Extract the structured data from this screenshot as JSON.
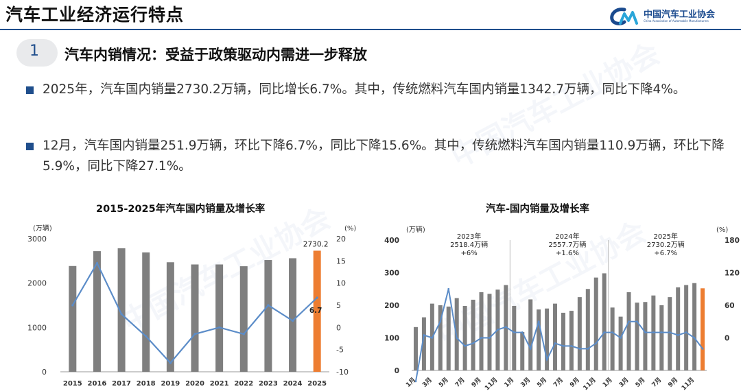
{
  "header": {
    "title": "汽车工业经济运行特点",
    "logo_cn": "中国汽车工业协会",
    "logo_en": "China Association of Automobile Manufacturers",
    "accent_color": "#1f4e8c"
  },
  "section": {
    "number": "1",
    "title": "汽车内销情况：受益于政策驱动内需进一步释放"
  },
  "bullets": [
    "2025年，汽车国内销量2730.2万辆，同比增长6.7%。其中，传统燃料汽车国内销量1342.7万辆，同比下降4%。",
    "12月，汽车国内销量251.9万辆，环比下降6.7%，同比下降15.6%。其中，传统燃料汽车国内销量110.9万辆，环比下降5.9%，同比下降27.1%。"
  ],
  "chart_left_title": "2015-2025年汽车国内销量及增长率",
  "chart_right_title": "汽车-国内销量及增长率",
  "chart_data": [
    {
      "type": "bar",
      "title": "2015-2025年汽车国内销量及增长率",
      "left_unit": "(万辆)",
      "right_unit": "(%)",
      "categories": [
        "2015",
        "2016",
        "2017",
        "2018",
        "2019",
        "2020",
        "2021",
        "2022",
        "2023",
        "2024",
        "2025"
      ],
      "series": [
        {
          "values": [
            2385,
            2720,
            2785,
            2690,
            2470,
            2420,
            2420,
            2380,
            2520,
            2560,
            2730.2
          ]
        },
        {
          "type": "line",
          "axis": "right",
          "values": [
            5,
            14.5,
            3,
            -2,
            -8,
            -1.5,
            0,
            -1.5,
            5,
            1.5,
            6.7
          ]
        }
      ],
      "data_labels": [
        "2730.2",
        "6.7"
      ],
      "ylim_left": [
        0,
        3000
      ],
      "ylim_right": [
        -10,
        20
      ],
      "left_ticks": [
        "0",
        "1000",
        "2000",
        "3000"
      ],
      "right_ticks": [
        "-10",
        "-5",
        "0",
        "5",
        "10",
        "15",
        "20"
      ],
      "colors": {
        "bars": "#7f7f7f",
        "highlight_bar": "#ed7d31",
        "line": "#5b8cc8"
      }
    },
    {
      "type": "bar",
      "title": "汽车-国内销量及增长率",
      "left_unit": "(万辆)",
      "right_unit": "(%)",
      "x_tick_labels": [
        "1月",
        "3月",
        "5月",
        "7月",
        "9月",
        "11月",
        "1月",
        "3月",
        "5月",
        "7月",
        "9月",
        "11月",
        "1月",
        "3月",
        "5月",
        "7月",
        "9月",
        "11月"
      ],
      "series": [
        {
          "values": [
            133,
            163,
            205,
            200,
            196,
            222,
            198,
            217,
            240,
            235,
            248,
            262,
            198,
            118,
            218,
            187,
            190,
            205,
            177,
            183,
            225,
            250,
            285,
            298,
            193,
            165,
            240,
            208,
            210,
            230,
            200,
            225,
            255,
            262,
            268,
            252
          ]
        },
        {
          "type": "line",
          "axis": "right",
          "values": [
            -80,
            5,
            0,
            30,
            90,
            0,
            -15,
            -10,
            0,
            0,
            15,
            20,
            10,
            10,
            -20,
            30,
            -40,
            -10,
            -15,
            -15,
            -20,
            -20,
            -10,
            10,
            10,
            0,
            30,
            30,
            10,
            10,
            10,
            10,
            5,
            10,
            0,
            -20
          ]
        }
      ],
      "ylim_left": [
        0,
        400
      ],
      "ylim_right": [
        -60,
        180
      ],
      "left_ticks": [
        "0",
        "100",
        "200",
        "300",
        "400"
      ],
      "right_ticks": [
        "0",
        "60",
        "120",
        "180"
      ],
      "annotations": [
        {
          "year": "2023年",
          "value": "2518.4万辆",
          "growth": "+6%"
        },
        {
          "year": "2024年",
          "value": "2557.7万辆",
          "growth": "+1.6%"
        },
        {
          "year": "2025年",
          "value": "2730.2万辆",
          "growth": "+6.7%"
        }
      ],
      "colors": {
        "bars": "#7f7f7f",
        "highlight_bar": "#ed7d31",
        "line": "#5b8cc8"
      }
    }
  ]
}
